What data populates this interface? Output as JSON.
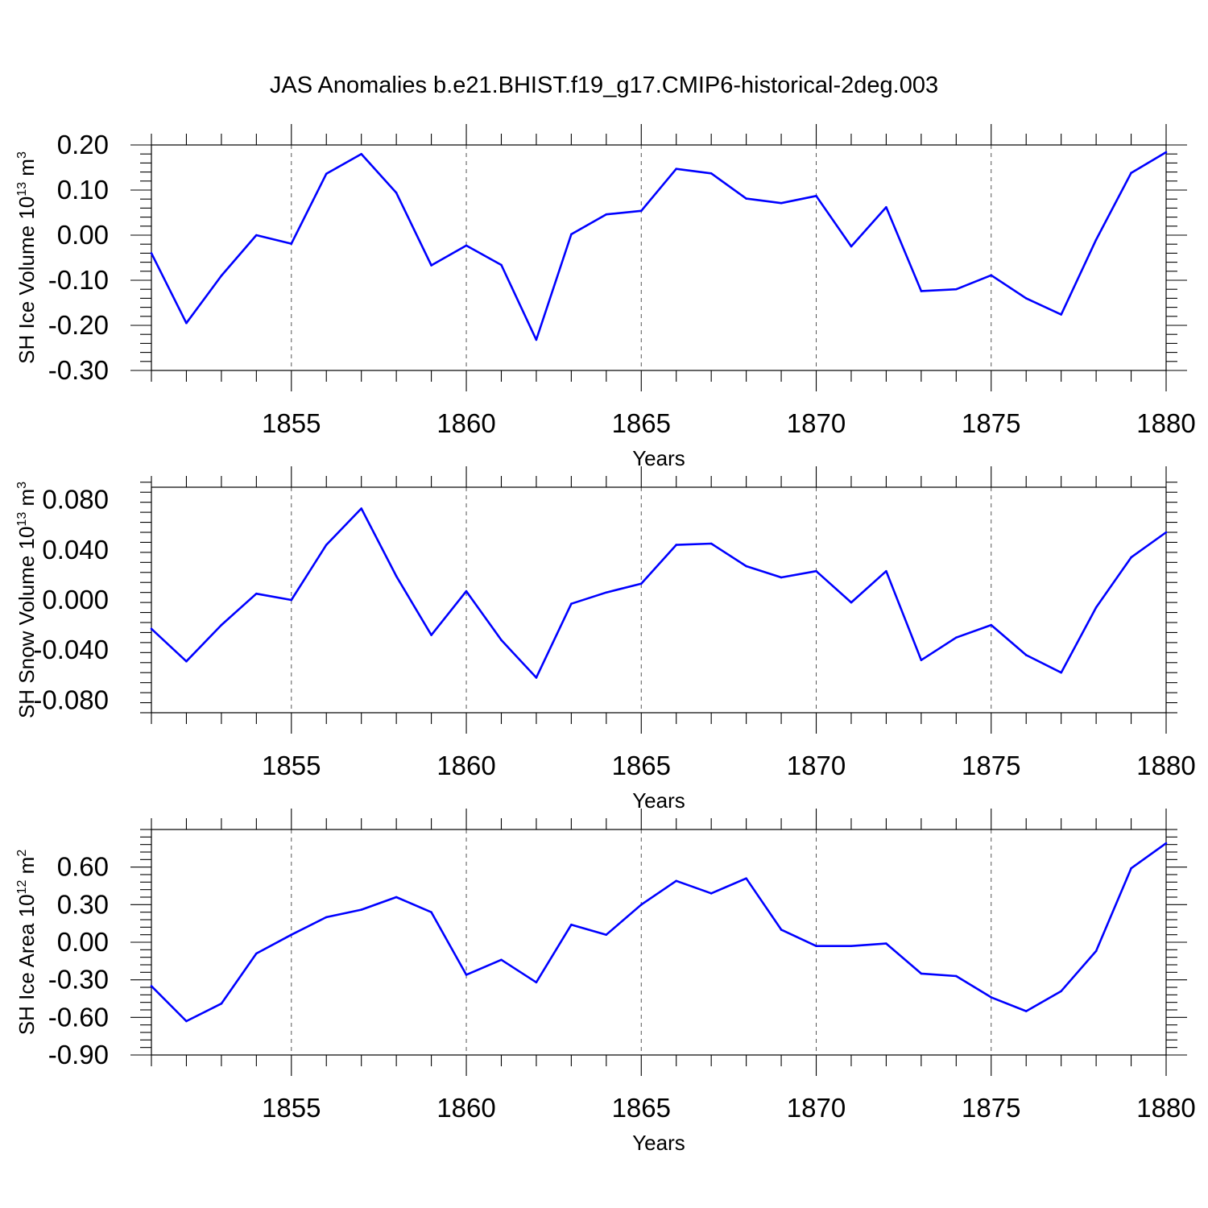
{
  "title": "JAS Anomalies b.e21.BHIST.f19_g17.CMIP6-historical-2deg.003",
  "chart_data": [
    {
      "type": "line",
      "xlabel": "Years",
      "ylabel": {
        "main": "SH Ice Volume 10",
        "sup": "13",
        "tail": " m",
        "unit_sup": "3"
      },
      "xlim": [
        1851,
        1880
      ],
      "ylim": [
        -0.3,
        0.2
      ],
      "xticks": [
        1855,
        1860,
        1865,
        1870,
        1875,
        1880
      ],
      "xtick_labels": [
        "1855",
        "1860",
        "1865",
        "1870",
        "1875",
        "1880"
      ],
      "yticks": [
        -0.3,
        -0.2,
        -0.1,
        0.0,
        0.1,
        0.2
      ],
      "ytick_labels": [
        "-0.30",
        "-0.20",
        "-0.10",
        "0.00",
        "0.10",
        "0.20"
      ],
      "grid": "dashed vertical lines at labeled years",
      "color": "#0000ff",
      "x": [
        1851,
        1852,
        1853,
        1854,
        1855,
        1856,
        1857,
        1858,
        1859,
        1860,
        1861,
        1862,
        1863,
        1864,
        1865,
        1866,
        1867,
        1868,
        1869,
        1870,
        1871,
        1872,
        1873,
        1874,
        1875,
        1876,
        1877,
        1878,
        1879,
        1880
      ],
      "y": [
        -0.04,
        -0.195,
        -0.09,
        0.0,
        -0.019,
        0.136,
        0.18,
        0.094,
        -0.067,
        -0.023,
        -0.066,
        -0.232,
        0.002,
        0.046,
        0.054,
        0.147,
        0.137,
        0.081,
        0.071,
        0.087,
        -0.025,
        0.062,
        -0.124,
        -0.12,
        -0.089,
        -0.14,
        -0.176,
        -0.01,
        0.138,
        0.184
      ]
    },
    {
      "type": "line",
      "xlabel": "Years",
      "ylabel": {
        "main": "SH Snow Volume 10",
        "sup": "13",
        "tail": " m",
        "unit_sup": "3"
      },
      "xlim": [
        1851,
        1880
      ],
      "ylim": [
        -0.09,
        0.09
      ],
      "xticks": [
        1855,
        1860,
        1865,
        1870,
        1875,
        1880
      ],
      "xtick_labels": [
        "1855",
        "1860",
        "1865",
        "1870",
        "1875",
        "1880"
      ],
      "yticks": [
        -0.08,
        -0.04,
        0.0,
        0.04,
        0.08
      ],
      "ytick_labels": [
        "-0.080",
        "-0.040",
        "0.000",
        "0.040",
        "0.080"
      ],
      "grid": "dashed vertical lines at labeled years",
      "color": "#0000ff",
      "x": [
        1851,
        1852,
        1853,
        1854,
        1855,
        1856,
        1857,
        1858,
        1859,
        1860,
        1861,
        1862,
        1863,
        1864,
        1865,
        1866,
        1867,
        1868,
        1869,
        1870,
        1871,
        1872,
        1873,
        1874,
        1875,
        1876,
        1877,
        1878,
        1879,
        1880
      ],
      "y": [
        -0.023,
        -0.049,
        -0.02,
        0.005,
        0.0,
        0.044,
        0.073,
        0.019,
        -0.028,
        0.007,
        -0.032,
        -0.062,
        -0.003,
        0.006,
        0.013,
        0.044,
        0.045,
        0.027,
        0.018,
        0.023,
        -0.002,
        0.023,
        -0.048,
        -0.03,
        -0.02,
        -0.044,
        -0.058,
        -0.006,
        0.034,
        0.054
      ]
    },
    {
      "type": "line",
      "xlabel": "Years",
      "ylabel": {
        "main": "SH Ice Area 10",
        "sup": "12",
        "tail": " m",
        "unit_sup": "2"
      },
      "xlim": [
        1851,
        1880
      ],
      "ylim": [
        -0.9,
        0.9
      ],
      "xticks": [
        1855,
        1860,
        1865,
        1870,
        1875,
        1880
      ],
      "xtick_labels": [
        "1855",
        "1860",
        "1865",
        "1870",
        "1875",
        "1880"
      ],
      "yticks": [
        -0.9,
        -0.6,
        -0.3,
        0.0,
        0.3,
        0.6
      ],
      "ytick_labels": [
        "-0.90",
        "-0.60",
        "-0.30",
        "0.00",
        "0.30",
        "0.60"
      ],
      "grid": "dashed vertical lines at labeled years",
      "color": "#0000ff",
      "x": [
        1851,
        1852,
        1853,
        1854,
        1855,
        1856,
        1857,
        1858,
        1859,
        1860,
        1861,
        1862,
        1863,
        1864,
        1865,
        1866,
        1867,
        1868,
        1869,
        1870,
        1871,
        1872,
        1873,
        1874,
        1875,
        1876,
        1877,
        1878,
        1879,
        1880
      ],
      "y": [
        -0.35,
        -0.63,
        -0.49,
        -0.09,
        0.06,
        0.2,
        0.26,
        0.36,
        0.24,
        -0.26,
        -0.14,
        -0.32,
        0.14,
        0.06,
        0.3,
        0.49,
        0.39,
        0.51,
        0.1,
        -0.03,
        -0.03,
        -0.01,
        -0.25,
        -0.27,
        -0.44,
        -0.55,
        -0.39,
        -0.07,
        0.59,
        0.79
      ]
    }
  ]
}
